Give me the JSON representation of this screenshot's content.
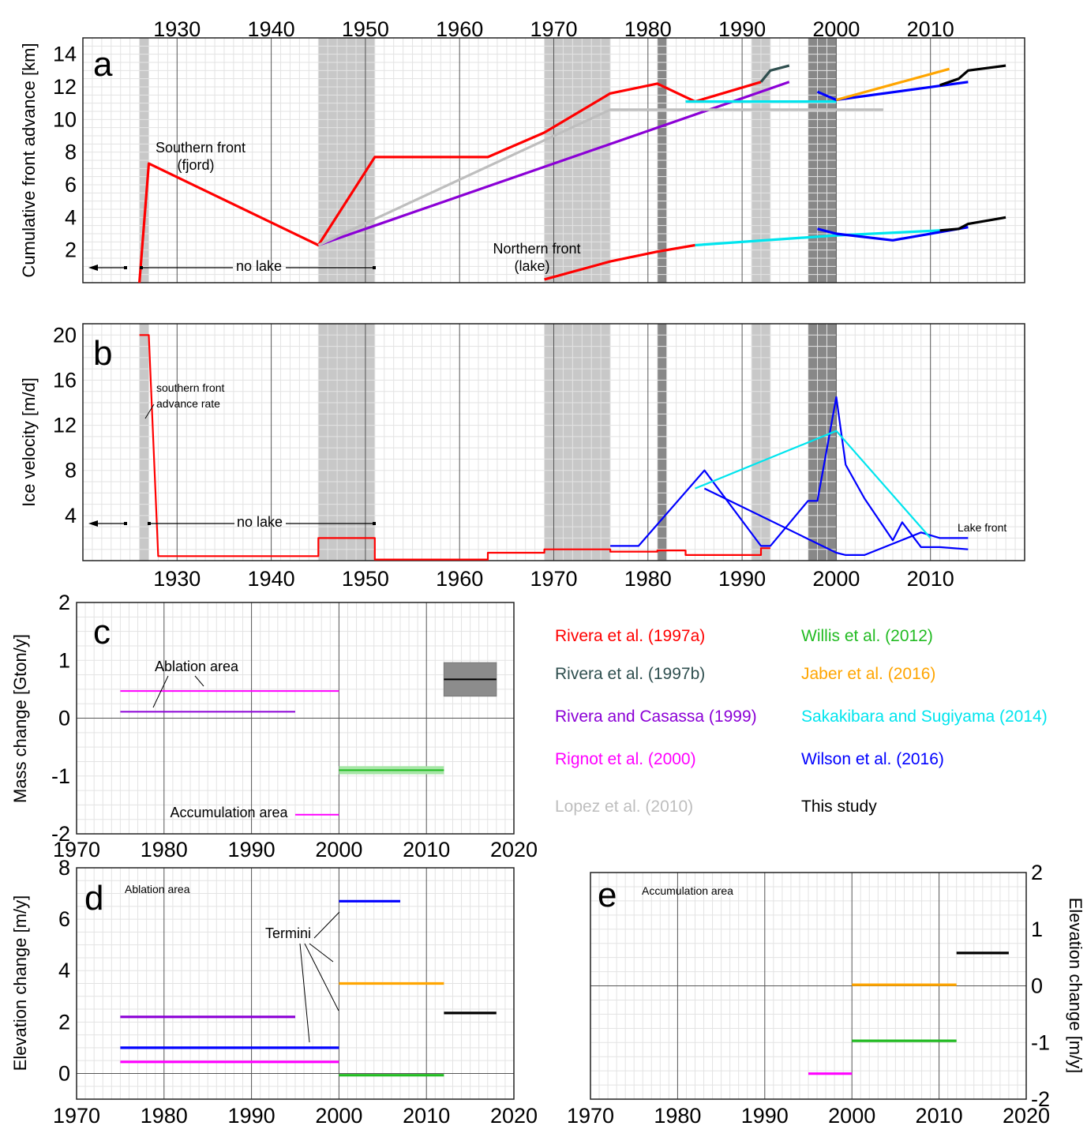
{
  "chart_data": [
    {
      "panel": "a",
      "type": "line",
      "ylabel": "Cumulative front advance [km]",
      "xlim": [
        1920,
        2020
      ],
      "ylim": [
        0,
        15
      ],
      "xticks": [
        1930,
        1940,
        1950,
        1960,
        1970,
        1980,
        1990,
        2000,
        2010
      ],
      "yticks": [
        2,
        4,
        6,
        8,
        10,
        12,
        14
      ],
      "x_ticks_position": "top",
      "annotations": {
        "southern": "Southern front",
        "southern2": "(fjord)",
        "northern": "Northern front",
        "northern2": "(lake)",
        "nolake": "no lake"
      },
      "shading": [
        {
          "x": [
            1926,
            1927
          ],
          "color": "#c8c8c8"
        },
        {
          "x": [
            1945,
            1951
          ],
          "color": "#c8c8c8"
        },
        {
          "x": [
            1969,
            1976
          ],
          "color": "#c8c8c8"
        },
        {
          "x": [
            1981,
            1982
          ],
          "color": "#888888"
        },
        {
          "x": [
            1991,
            1993
          ],
          "color": "#c8c8c8"
        },
        {
          "x": [
            1997,
            2000
          ],
          "color": "#888888"
        }
      ],
      "series": [
        {
          "source": "Rivera et al. (1997a)",
          "color": "#ff0000",
          "x": [
            1926,
            1927,
            1945,
            1951,
            1963,
            1969,
            1976,
            1981,
            1985,
            1992
          ],
          "y": [
            0,
            7.3,
            2.3,
            7.7,
            7.7,
            9.2,
            11.6,
            12.2,
            11.1,
            12.3
          ]
        },
        {
          "source": "Rivera et al. (1997a)",
          "color": "#ff0000",
          "x": [
            1969,
            1976,
            1981,
            1985
          ],
          "y": [
            0.2,
            1.3,
            1.9,
            2.3
          ]
        },
        {
          "source": "Rivera et al. (1997b)",
          "color": "#2f4f4f",
          "x": [
            1992,
            1993,
            1995
          ],
          "y": [
            12.3,
            13.0,
            13.3
          ]
        },
        {
          "source": "Rivera and Casassa (1999)",
          "color": "#8b00d6",
          "x": [
            1945,
            1995
          ],
          "y": [
            2.3,
            12.3
          ]
        },
        {
          "source": "Lopez et al. (2010)",
          "color": "#bebebe",
          "x": [
            1945,
            1976,
            2005
          ],
          "y": [
            2.3,
            10.6,
            10.6
          ]
        },
        {
          "source": "Sakakibara and Sugiyama (2014)",
          "color": "#00e5ee",
          "x": [
            1984,
            2000
          ],
          "y": [
            11.1,
            11.1
          ]
        },
        {
          "source": "Sakakibara and Sugiyama (2014)",
          "color": "#00e5ee",
          "x": [
            1985,
            2000,
            2011
          ],
          "y": [
            2.3,
            2.9,
            3.2
          ]
        },
        {
          "source": "Wilson et al. (2016)",
          "color": "#0000ff",
          "x": [
            1998,
            2000,
            2014
          ],
          "y": [
            11.7,
            11.2,
            12.3
          ]
        },
        {
          "source": "Wilson et al. (2016)",
          "color": "#0000ff",
          "x": [
            1998,
            2000,
            2006,
            2014
          ],
          "y": [
            3.3,
            3.0,
            2.6,
            3.4
          ]
        },
        {
          "source": "Jaber et al. (2016)",
          "color": "#ffa500",
          "x": [
            2000,
            2012
          ],
          "y": [
            11.2,
            13.1
          ]
        },
        {
          "source": "This study",
          "color": "#000000",
          "x": [
            2011,
            2013,
            2014,
            2018
          ],
          "y": [
            12.1,
            12.5,
            13.0,
            13.3
          ]
        },
        {
          "source": "This study",
          "color": "#000000",
          "x": [
            2011,
            2013,
            2014,
            2018
          ],
          "y": [
            3.2,
            3.3,
            3.6,
            4.0
          ]
        }
      ]
    },
    {
      "panel": "b",
      "type": "line",
      "ylabel": "Ice velocity [m/d]",
      "xlim": [
        1920,
        2020
      ],
      "ylim": [
        0,
        21
      ],
      "xticks": [
        1930,
        1940,
        1950,
        1960,
        1970,
        1980,
        1990,
        2000,
        2010
      ],
      "yticks": [
        4,
        8,
        12,
        16,
        20
      ],
      "annotations": {
        "rate1": "southern front",
        "rate2": "advance rate",
        "nolake": "no lake",
        "lakefront": "Lake front"
      },
      "series": [
        {
          "source": "Rivera et al. (1997a)",
          "color": "#ff0000",
          "x": [
            1926,
            1927,
            1928,
            1945,
            1945,
            1951,
            1951,
            1963,
            1963,
            1969,
            1969,
            1976,
            1976,
            1981,
            1981,
            1984,
            1984,
            1992,
            1992,
            1993
          ],
          "y": [
            20,
            20,
            0.4,
            0.4,
            2.0,
            2.0,
            0.1,
            0.1,
            0.7,
            0.7,
            1.0,
            1.0,
            0.8,
            0.8,
            0.9,
            0.9,
            0.5,
            0.5,
            1.1,
            1.1
          ]
        },
        {
          "source": "Wilson et al. (2016)",
          "color": "#0000ff",
          "x": [
            1976,
            1979,
            1986,
            1992,
            1993,
            1997,
            1998,
            2000,
            2001,
            2003,
            2006,
            2007,
            2009,
            2011,
            2014
          ],
          "y": [
            1.3,
            1.3,
            8.0,
            1.3,
            1.3,
            5.3,
            5.3,
            14.5,
            8.5,
            5.5,
            1.8,
            3.4,
            1.2,
            1.2,
            1.0
          ]
        },
        {
          "source": "Wilson et al. (2016)",
          "color": "#0000ff",
          "x": [
            1986,
            2000,
            2001,
            2003,
            2009,
            2011,
            2014
          ],
          "y": [
            6.4,
            0.7,
            0.5,
            0.5,
            2.5,
            2.0,
            2.0
          ]
        },
        {
          "source": "Sakakibara and Sugiyama (2014)",
          "color": "#00e5ee",
          "x": [
            1985,
            2000,
            2010
          ],
          "y": [
            6.4,
            11.5,
            2.0
          ]
        }
      ]
    },
    {
      "panel": "c",
      "type": "line",
      "ylabel": "Mass change [Gton/y]",
      "xlim": [
        1970,
        2020
      ],
      "ylim": [
        -2,
        2
      ],
      "xticks": [
        1970,
        1980,
        1990,
        2000,
        2010,
        2020
      ],
      "yticks": [
        -2,
        -1,
        0,
        1,
        2
      ],
      "annotations": {
        "ablation": "Ablation area",
        "accumulation": "Accumulation area"
      },
      "series": [
        {
          "source": "Rignot et al. (2000)",
          "color": "#ff00ff",
          "x": [
            1975,
            2000
          ],
          "y": [
            0.47,
            0.47
          ]
        },
        {
          "source": "Rivera and Casassa (1999)",
          "color": "#8b00d6",
          "x": [
            1975,
            1995
          ],
          "y": [
            0.11,
            0.11
          ]
        },
        {
          "source": "Rignot et al. (2000)",
          "color": "#ff00ff",
          "x": [
            1995,
            2000
          ],
          "y": [
            -1.67,
            -1.67
          ]
        },
        {
          "source": "Willis et al. (2012)",
          "color": "#22bb22",
          "x": [
            2000,
            2012
          ],
          "y": [
            -0.9,
            -0.9
          ],
          "band": [
            -0.97,
            -0.83
          ]
        },
        {
          "source": "This study",
          "color": "#000000",
          "x": [
            2012,
            2018
          ],
          "y": [
            0.67,
            0.67
          ],
          "band": [
            0.38,
            0.96
          ]
        }
      ]
    },
    {
      "panel": "d",
      "type": "line",
      "ylabel": "Elevation change [m/y]",
      "xlim": [
        1970,
        2020
      ],
      "ylim": [
        -1,
        8
      ],
      "xticks": [
        1970,
        1980,
        1990,
        2000,
        2010,
        2020
      ],
      "yticks": [
        0,
        2,
        4,
        6,
        8
      ],
      "annotations": {
        "area": "Ablation area",
        "termini": "Termini"
      },
      "series": [
        {
          "source": "Rivera and Casassa (1999)",
          "color": "#8b00d6",
          "x": [
            1975,
            1995
          ],
          "y": [
            2.2,
            2.2
          ]
        },
        {
          "source": "Wilson et al. (2016)",
          "color": "#0000ff",
          "x": [
            1975,
            2000
          ],
          "y": [
            1.0,
            1.0
          ]
        },
        {
          "source": "Rignot et al. (2000)",
          "color": "#ff00ff",
          "x": [
            1975,
            2000
          ],
          "y": [
            0.45,
            0.45
          ]
        },
        {
          "source": "Wilson et al. (2016)",
          "color": "#0000ff",
          "x": [
            2000,
            2007
          ],
          "y": [
            6.7,
            6.7
          ]
        },
        {
          "source": "Jaber et al. (2016)",
          "color": "#ffa500",
          "x": [
            2000,
            2012
          ],
          "y": [
            3.5,
            3.5
          ]
        },
        {
          "source": "Willis et al. (2012)",
          "color": "#22bb22",
          "x": [
            2000,
            2012
          ],
          "y": [
            -0.07,
            -0.07
          ]
        },
        {
          "source": "This study",
          "color": "#000000",
          "x": [
            2012,
            2018
          ],
          "y": [
            2.35,
            2.35
          ]
        }
      ]
    },
    {
      "panel": "e",
      "type": "line",
      "ylabel": "Elevation change [m/y]",
      "xlim": [
        1970,
        2020
      ],
      "ylim": [
        -2,
        2
      ],
      "xticks": [
        1970,
        1980,
        1990,
        2000,
        2010,
        2020
      ],
      "yticks": [
        -2,
        -1,
        0,
        1,
        2
      ],
      "annotations": {
        "area": "Accumulation area"
      },
      "series": [
        {
          "source": "Rignot et al. (2000)",
          "color": "#ff00ff",
          "x": [
            1995,
            2000
          ],
          "y": [
            -1.55,
            -1.55
          ]
        },
        {
          "source": "Jaber et al. (2016)",
          "color": "#ffa500",
          "x": [
            2000,
            2012
          ],
          "y": [
            0.02,
            0.02
          ]
        },
        {
          "source": "Willis et al. (2012)",
          "color": "#22bb22",
          "x": [
            2000,
            2012
          ],
          "y": [
            -0.97,
            -0.97
          ]
        },
        {
          "source": "This study",
          "color": "#000000",
          "x": [
            2012,
            2018
          ],
          "y": [
            0.58,
            0.58
          ]
        }
      ]
    }
  ],
  "legend": [
    {
      "label": "Rivera et al. (1997a)",
      "color": "#ff0000"
    },
    {
      "label": "Rivera et al. (1997b)",
      "color": "#2f4f4f"
    },
    {
      "label": "Rivera and Casassa (1999)",
      "color": "#8b00d6"
    },
    {
      "label": "Rignot et al. (2000)",
      "color": "#ff00ff"
    },
    {
      "label": "Lopez et al. (2010)",
      "color": "#bebebe"
    },
    {
      "label": "Willis et al. (2012)",
      "color": "#22bb22"
    },
    {
      "label": "Jaber et al. (2016)",
      "color": "#ffa500"
    },
    {
      "label": "Sakakibara and Sugiyama (2014)",
      "color": "#00e5ee"
    },
    {
      "label": "Wilson et al. (2016)",
      "color": "#0000ff"
    },
    {
      "label": "This study",
      "color": "#000000"
    }
  ]
}
